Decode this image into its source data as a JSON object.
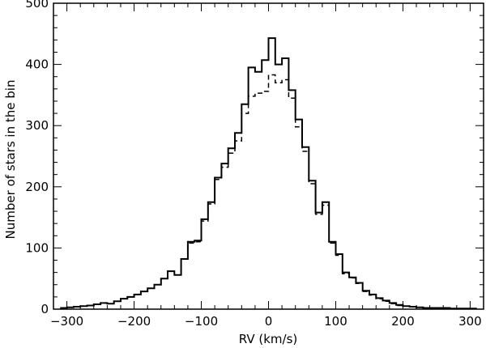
{
  "chart_data": {
    "type": "histogram",
    "xlabel": "RV (km/s)",
    "ylabel": "Number of stars in the bin",
    "xlim": [
      -320,
      320
    ],
    "ylim": [
      0,
      500
    ],
    "x_ticks": [
      -300,
      -200,
      -100,
      0,
      100,
      200,
      300
    ],
    "y_ticks": [
      0,
      100,
      200,
      300,
      400,
      500
    ],
    "x_minor_step": 20,
    "y_minor_step": 20,
    "bin_width": 10,
    "bin_edges_start": -310,
    "series": [
      {
        "style": "solid",
        "values": [
          2,
          3,
          4,
          5,
          6,
          8,
          10,
          9,
          13,
          17,
          20,
          24,
          29,
          34,
          40,
          50,
          62,
          56,
          82,
          110,
          112,
          147,
          175,
          215,
          238,
          263,
          288,
          335,
          395,
          388,
          407,
          443,
          400,
          410,
          358,
          310,
          265,
          210,
          158,
          175,
          110,
          90,
          60,
          52,
          43,
          30,
          24,
          18,
          14,
          10,
          7,
          5,
          4,
          3,
          2,
          2,
          2,
          2,
          1,
          1,
          1,
          1
        ]
      },
      {
        "style": "dashed",
        "values": [
          2,
          3,
          4,
          5,
          6,
          8,
          10,
          9,
          13,
          17,
          20,
          24,
          29,
          34,
          40,
          50,
          62,
          56,
          82,
          108,
          110,
          144,
          172,
          212,
          232,
          255,
          275,
          320,
          348,
          353,
          356,
          383,
          370,
          375,
          345,
          298,
          258,
          205,
          155,
          170,
          108,
          88,
          58,
          51,
          42,
          29,
          23,
          17,
          13,
          9,
          6,
          5,
          4,
          3,
          2,
          2,
          2,
          2,
          1,
          1,
          1,
          1
        ]
      }
    ]
  }
}
